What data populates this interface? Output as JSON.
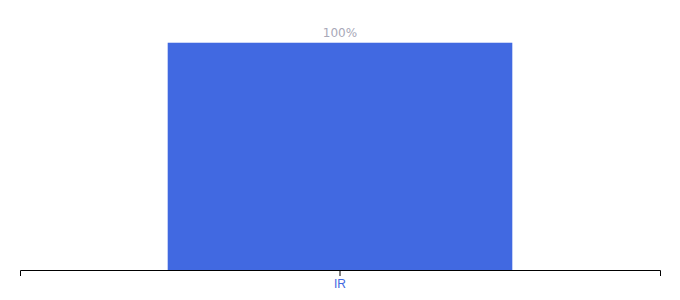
{
  "chart_data": {
    "type": "bar",
    "categories": [
      "IR"
    ],
    "values": [
      100
    ],
    "value_labels": [
      "100%"
    ],
    "color": "#4169E1",
    "ylim": [
      0,
      110
    ],
    "data_labels": true,
    "tick_labels": "x"
  }
}
